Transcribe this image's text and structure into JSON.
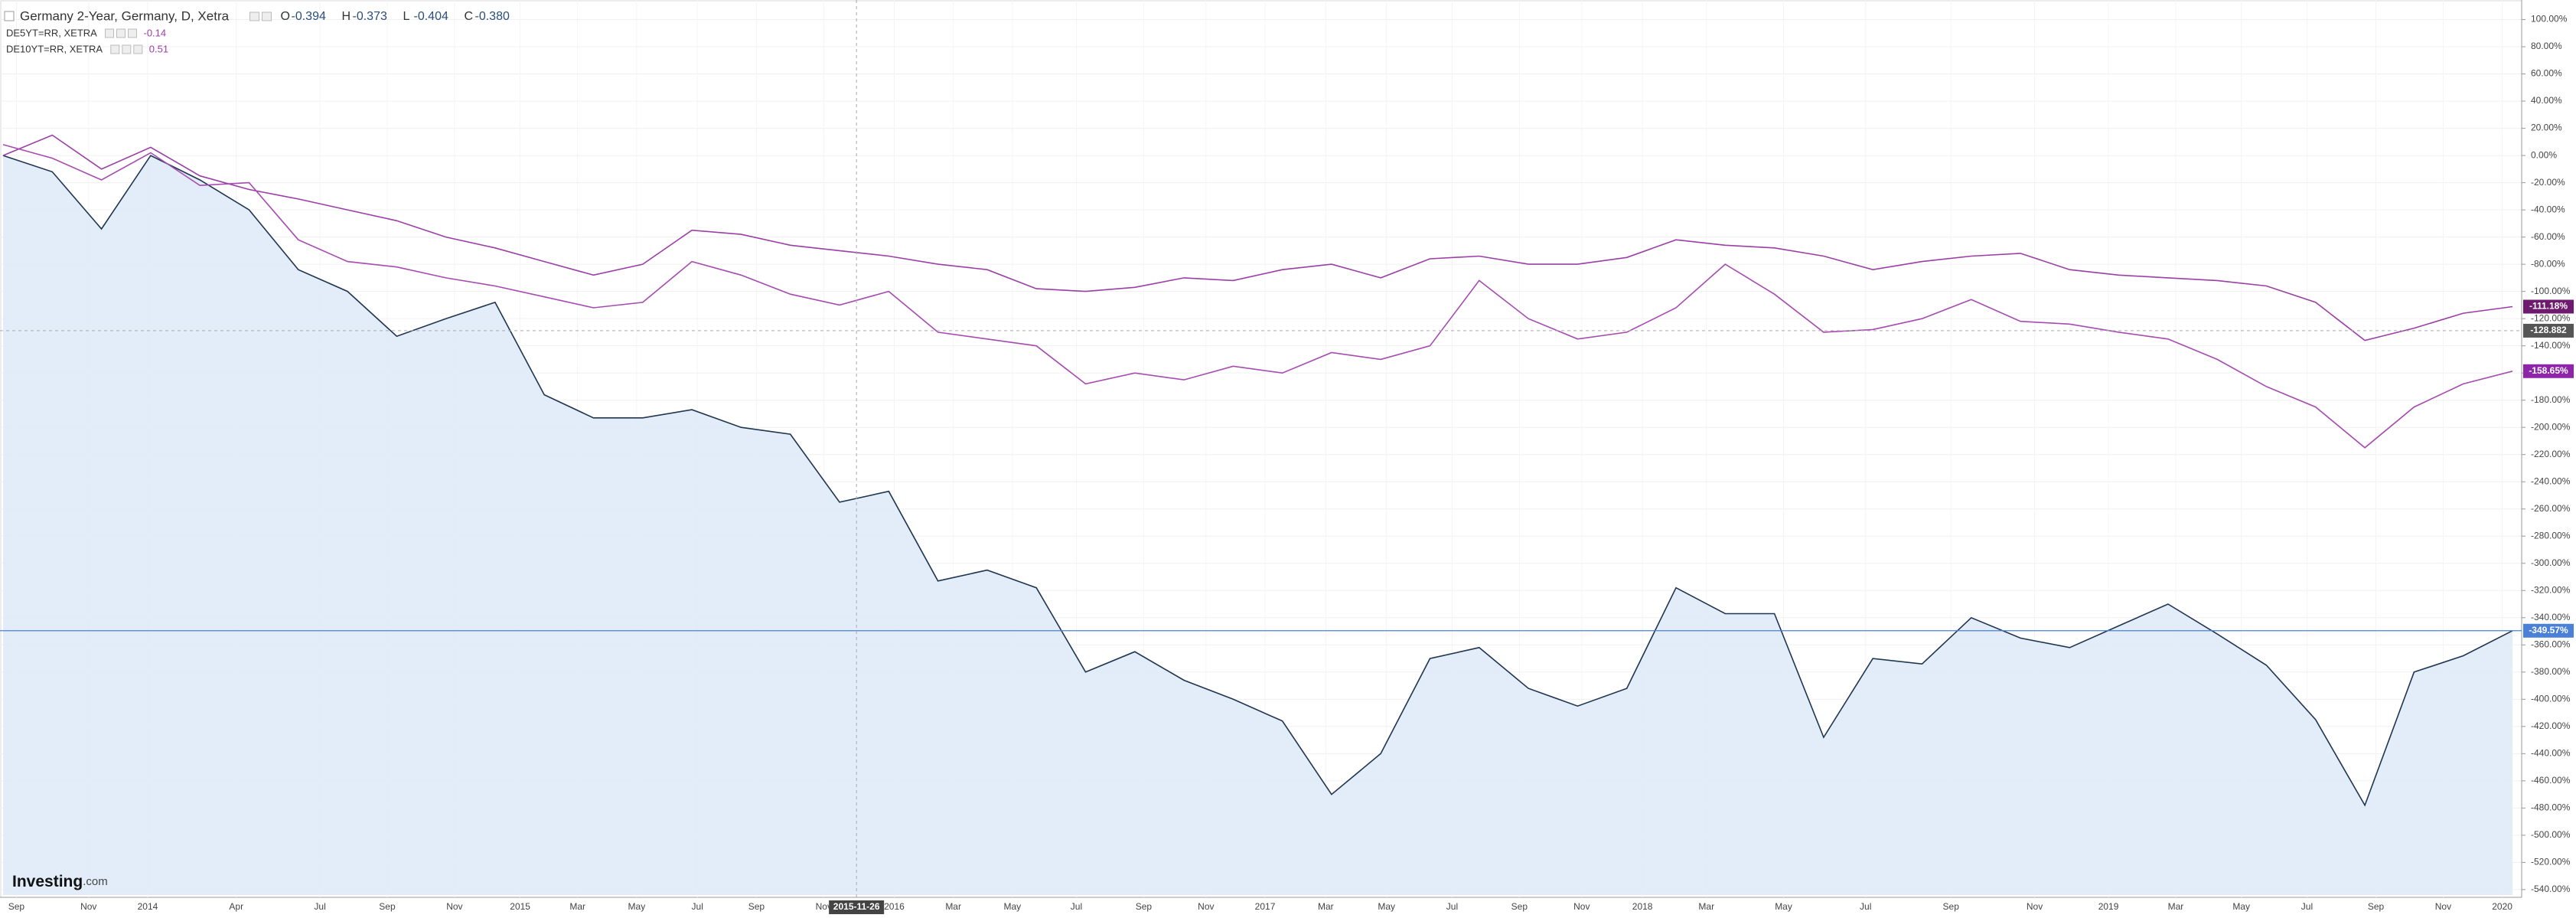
{
  "chart_data": {
    "type": "line",
    "title": "Germany 2-Year, Germany, D, Xetra",
    "ohlc": [
      {
        "name": "O",
        "value": "-0.394"
      },
      {
        "name": "H",
        "value": "-0.373"
      },
      {
        "name": "L",
        "value": "-0.404"
      },
      {
        "name": "C",
        "value": "-0.380"
      }
    ],
    "overlays": [
      {
        "name": "DE5YT=RR, XETRA",
        "value": "-0.14"
      },
      {
        "name": "DE10YT=RR, XETRA",
        "value": "0.51"
      }
    ],
    "logo": "Investing",
    "logo_suffix": ".com",
    "x_labels": [
      "Sep",
      "Nov",
      "2014",
      "Apr",
      "Jul",
      "Sep",
      "Nov",
      "2015",
      "Mar",
      "May",
      "Jul",
      "Sep",
      "Nov",
      "2016",
      "Mar",
      "May",
      "Jul",
      "Sep",
      "Nov",
      "2017",
      "Mar",
      "May",
      "Jul",
      "Sep",
      "Nov",
      "2018",
      "Mar",
      "May",
      "Jul",
      "Sep",
      "Nov",
      "2019",
      "Mar",
      "May",
      "Jul",
      "Sep",
      "Nov",
      "2020"
    ],
    "crosshair": {
      "x_label": "2015-11-26",
      "y": -128.882,
      "y_label": "-128.882"
    },
    "ylim": [
      -544,
      111
    ],
    "yticks": [
      {
        "value": 100,
        "label": "100.00%"
      },
      {
        "value": 80,
        "label": "80.00%"
      },
      {
        "value": 60,
        "label": "60.00%"
      },
      {
        "value": 40,
        "label": "40.00%"
      },
      {
        "value": 20,
        "label": "20.00%"
      },
      {
        "value": 0,
        "label": "0.00%"
      },
      {
        "value": -20,
        "label": "-20.00%"
      },
      {
        "value": -40,
        "label": "-40.00%"
      },
      {
        "value": -60,
        "label": "-60.00%"
      },
      {
        "value": -80,
        "label": "-80.00%"
      },
      {
        "value": -100,
        "label": "-100.00%"
      },
      {
        "value": -120,
        "label": "-120.00%"
      },
      {
        "value": -140,
        "label": "-140.00%"
      },
      {
        "value": -160,
        "label": "-160.00%"
      },
      {
        "value": -180,
        "label": "-180.00%"
      },
      {
        "value": -200,
        "label": "-200.00%"
      },
      {
        "value": -220,
        "label": "-220.00%"
      },
      {
        "value": -240,
        "label": "-240.00%"
      },
      {
        "value": -260,
        "label": "-260.00%"
      },
      {
        "value": -280,
        "label": "-280.00%"
      },
      {
        "value": -300,
        "label": "-300.00%"
      },
      {
        "value": -320,
        "label": "-320.00%"
      },
      {
        "value": -340,
        "label": "-340.00%"
      },
      {
        "value": -360,
        "label": "-360.00%"
      },
      {
        "value": -380,
        "label": "-380.00%"
      },
      {
        "value": -400,
        "label": "-400.00%"
      },
      {
        "value": -420,
        "label": "-420.00%"
      },
      {
        "value": -440,
        "label": "-440.00%"
      },
      {
        "value": -460,
        "label": "-460.00%"
      },
      {
        "value": -480,
        "label": "-480.00%"
      },
      {
        "value": -500,
        "label": "-500.00%"
      },
      {
        "value": -520,
        "label": "-520.00%"
      },
      {
        "value": -540,
        "label": "-540.00%"
      }
    ],
    "grid": true,
    "series": [
      {
        "name": "Germany 2-Year",
        "color": "#1f3550",
        "fill": "#deeaf8",
        "area": true,
        "last_label": "-349.57%",
        "label_color": "#4a80d8",
        "values": [
          0,
          -12,
          -54,
          0,
          -18,
          -40,
          -84,
          -100,
          -133,
          -120,
          -108,
          -176,
          -193,
          -193,
          -187,
          -200,
          -205,
          -255,
          -247,
          -313,
          -305,
          -318,
          -380,
          -365,
          -386,
          -400,
          -416,
          -470,
          -440,
          -370,
          -362,
          -392,
          -405,
          -392,
          -318,
          -337,
          -337,
          -428,
          -370,
          -374,
          -340,
          -355,
          -362,
          -346,
          -330,
          -352,
          -375,
          -415,
          -478,
          -380,
          -368,
          -349.57
        ]
      },
      {
        "name": "DE5YT=RR, XETRA",
        "color": "#9b3fa6",
        "area": false,
        "last_label": "-111.18%",
        "label_color": "#6e1a6e",
        "values": [
          0,
          15,
          -10,
          6,
          -15,
          -25,
          -32,
          -40,
          -48,
          -60,
          -68,
          -78,
          -88,
          -80,
          -55,
          -58,
          -66,
          -70,
          -74,
          -80,
          -84,
          -98,
          -100,
          -97,
          -90,
          -92,
          -84,
          -80,
          -90,
          -76,
          -74,
          -80,
          -80,
          -75,
          -62,
          -66,
          -68,
          -74,
          -84,
          -78,
          -74,
          -72,
          -84,
          -88,
          -90,
          -92,
          -96,
          -108,
          -136,
          -127,
          -116,
          -111.18
        ]
      },
      {
        "name": "DE10YT=RR, XETRA",
        "color": "#a64bb0",
        "area": false,
        "last_label": "-158.65%",
        "label_color": "#8e24aa",
        "values": [
          8,
          -2,
          -18,
          2,
          -22,
          -20,
          -62,
          -78,
          -82,
          -90,
          -96,
          -104,
          -112,
          -108,
          -78,
          -88,
          -102,
          -110,
          -100,
          -130,
          -135,
          -140,
          -168,
          -160,
          -165,
          -155,
          -160,
          -145,
          -150,
          -140,
          -92,
          -120,
          -135,
          -130,
          -112,
          -80,
          -102,
          -130,
          -128,
          -120,
          -106,
          -122,
          -124,
          -130,
          -135,
          -150,
          -170,
          -185,
          -215,
          -185,
          -168,
          -158.65
        ]
      }
    ]
  }
}
